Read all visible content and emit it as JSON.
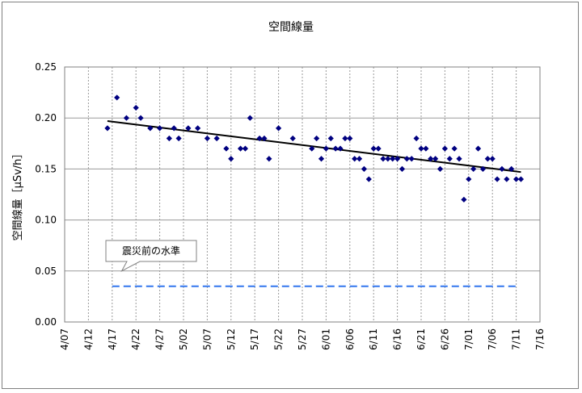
{
  "chart_data": {
    "type": "scatter",
    "title": "空間線量",
    "ylabel": "空間線量［μSv/h］",
    "xlabel": "",
    "ylim": [
      0,
      0.25
    ],
    "yticks": [
      "0.00",
      "0.05",
      "0.10",
      "0.15",
      "0.20",
      "0.25"
    ],
    "xlim": [
      "2011-04-07",
      "2011-07-16"
    ],
    "xticks": [
      "4/07",
      "4/12",
      "4/17",
      "4/22",
      "4/27",
      "5/02",
      "5/07",
      "5/12",
      "5/17",
      "5/22",
      "5/27",
      "6/01",
      "6/06",
      "6/11",
      "6/16",
      "6/21",
      "6/26",
      "7/01",
      "7/06",
      "7/11",
      "7/16"
    ],
    "grid": {
      "x": true,
      "y": true
    },
    "series": [
      {
        "marker": "diamond",
        "color": "#000080",
        "points": [
          [
            "2011-04-16",
            0.19
          ],
          [
            "2011-04-18",
            0.22
          ],
          [
            "2011-04-20",
            0.2
          ],
          [
            "2011-04-22",
            0.21
          ],
          [
            "2011-04-23",
            0.2
          ],
          [
            "2011-04-25",
            0.19
          ],
          [
            "2011-04-27",
            0.19
          ],
          [
            "2011-04-29",
            0.18
          ],
          [
            "2011-04-30",
            0.19
          ],
          [
            "2011-05-01",
            0.18
          ],
          [
            "2011-05-03",
            0.19
          ],
          [
            "2011-05-05",
            0.19
          ],
          [
            "2011-05-07",
            0.18
          ],
          [
            "2011-05-09",
            0.18
          ],
          [
            "2011-05-11",
            0.17
          ],
          [
            "2011-05-12",
            0.16
          ],
          [
            "2011-05-14",
            0.17
          ],
          [
            "2011-05-15",
            0.17
          ],
          [
            "2011-05-16",
            0.2
          ],
          [
            "2011-05-18",
            0.18
          ],
          [
            "2011-05-19",
            0.18
          ],
          [
            "2011-05-20",
            0.16
          ],
          [
            "2011-05-22",
            0.19
          ],
          [
            "2011-05-25",
            0.18
          ],
          [
            "2011-05-29",
            0.17
          ],
          [
            "2011-05-30",
            0.18
          ],
          [
            "2011-05-31",
            0.16
          ],
          [
            "2011-06-01",
            0.17
          ],
          [
            "2011-06-02",
            0.18
          ],
          [
            "2011-06-03",
            0.17
          ],
          [
            "2011-06-04",
            0.17
          ],
          [
            "2011-06-05",
            0.18
          ],
          [
            "2011-06-06",
            0.18
          ],
          [
            "2011-06-07",
            0.16
          ],
          [
            "2011-06-08",
            0.16
          ],
          [
            "2011-06-09",
            0.15
          ],
          [
            "2011-06-10",
            0.14
          ],
          [
            "2011-06-11",
            0.17
          ],
          [
            "2011-06-12",
            0.17
          ],
          [
            "2011-06-13",
            0.16
          ],
          [
            "2011-06-14",
            0.16
          ],
          [
            "2011-06-15",
            0.16
          ],
          [
            "2011-06-16",
            0.16
          ],
          [
            "2011-06-17",
            0.15
          ],
          [
            "2011-06-18",
            0.16
          ],
          [
            "2011-06-19",
            0.16
          ],
          [
            "2011-06-20",
            0.18
          ],
          [
            "2011-06-21",
            0.17
          ],
          [
            "2011-06-22",
            0.17
          ],
          [
            "2011-06-23",
            0.16
          ],
          [
            "2011-06-24",
            0.16
          ],
          [
            "2011-06-25",
            0.15
          ],
          [
            "2011-06-26",
            0.17
          ],
          [
            "2011-06-27",
            0.16
          ],
          [
            "2011-06-28",
            0.17
          ],
          [
            "2011-06-29",
            0.16
          ],
          [
            "2011-06-30",
            0.12
          ],
          [
            "2011-07-01",
            0.14
          ],
          [
            "2011-07-02",
            0.15
          ],
          [
            "2011-07-03",
            0.17
          ],
          [
            "2011-07-04",
            0.15
          ],
          [
            "2011-07-05",
            0.16
          ],
          [
            "2011-07-06",
            0.16
          ],
          [
            "2011-07-07",
            0.14
          ],
          [
            "2011-07-08",
            0.15
          ],
          [
            "2011-07-09",
            0.14
          ],
          [
            "2011-07-10",
            0.15
          ],
          [
            "2011-07-11",
            0.14
          ],
          [
            "2011-07-12",
            0.14
          ]
        ]
      }
    ],
    "trendline": {
      "color": "#000000",
      "start": [
        "2011-04-16",
        0.197
      ],
      "end": [
        "2011-07-12",
        0.147
      ]
    },
    "reference_line": {
      "color": "#3377ee",
      "style": "dashed",
      "value": 0.035,
      "start": "2011-04-17",
      "end": "2011-07-11"
    },
    "annotation": {
      "text": "震災前の水準",
      "points_to": [
        "2011-04-19",
        0.05
      ]
    }
  }
}
